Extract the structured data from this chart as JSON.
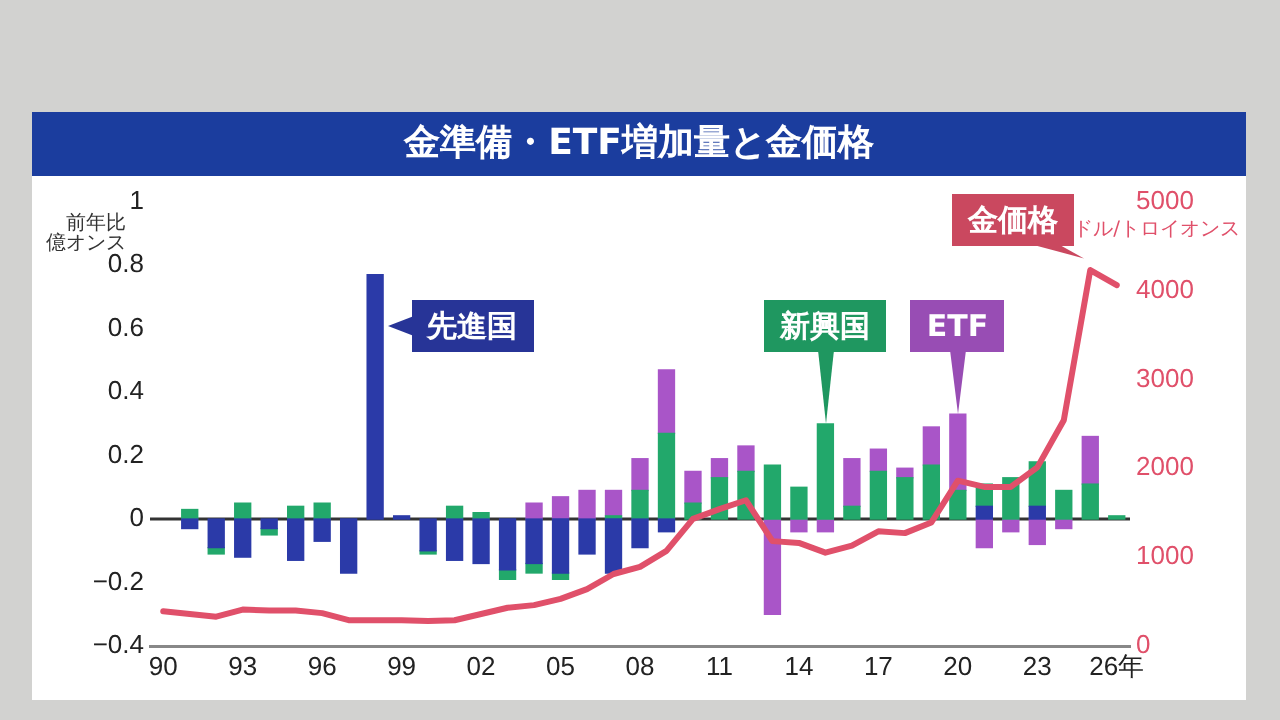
{
  "chart_data": {
    "type": "bar",
    "title": "金準備・ETF増加量と金価格",
    "ylabel": "前年比億オンス",
    "y2label": "ドル/トロイオンス",
    "stacked": true,
    "legend": false,
    "grid": false,
    "marker": "none",
    "categories": [
      "90",
      null,
      null,
      "93",
      null,
      null,
      "96",
      null,
      null,
      "99",
      null,
      null,
      "02",
      null,
      null,
      "05",
      null,
      null,
      "08",
      null,
      null,
      "11",
      null,
      null,
      "14",
      null,
      null,
      "17",
      null,
      null,
      "20",
      null,
      null,
      "23",
      null,
      null,
      "26年"
    ],
    "ylim": [
      -0.4,
      1
    ],
    "yticks": [
      {
        "value": -0.4,
        "label": "−0.4"
      },
      {
        "value": -0.2,
        "label": "−0.2"
      },
      0,
      0.2,
      0.4,
      0.6,
      0.8,
      1
    ],
    "y2lim": [
      0,
      5000
    ],
    "y2ticks": [
      0,
      1000,
      2000,
      3000,
      4000,
      5000
    ],
    "ref_lines": [
      {
        "axis": "y",
        "value": 0,
        "color": "#333333"
      }
    ],
    "series": [
      {
        "name": "先進国",
        "color": "#2b3aa8",
        "values": [
          null,
          -0.03,
          -0.09,
          -0.12,
          -0.03,
          -0.13,
          -0.07,
          -0.17,
          0.77,
          0.01,
          -0.1,
          -0.13,
          -0.14,
          -0.16,
          -0.14,
          -0.17,
          -0.11,
          -0.17,
          -0.09,
          -0.04,
          null,
          null,
          null,
          null,
          null,
          null,
          null,
          null,
          null,
          null,
          null,
          0.04,
          null,
          0.04,
          null,
          null,
          null
        ]
      },
      {
        "name": "新興国",
        "color": "#22a86b",
        "values": [
          null,
          0.03,
          -0.02,
          0.05,
          -0.02,
          0.04,
          0.05,
          null,
          null,
          null,
          -0.01,
          0.04,
          0.02,
          -0.03,
          -0.03,
          -0.02,
          null,
          0.01,
          0.09,
          0.27,
          0.05,
          0.13,
          0.15,
          0.17,
          0.1,
          0.3,
          0.04,
          0.15,
          0.13,
          0.17,
          0.09,
          0.07,
          0.13,
          0.14,
          0.09,
          0.11,
          0.01
        ]
      },
      {
        "name": "ETF",
        "color": "#a955c8",
        "values": [
          null,
          null,
          null,
          null,
          null,
          null,
          null,
          null,
          null,
          null,
          null,
          null,
          null,
          null,
          0.05,
          0.07,
          0.09,
          0.08,
          0.1,
          0.2,
          0.1,
          0.06,
          0.08,
          -0.3,
          -0.04,
          -0.04,
          0.15,
          0.07,
          0.03,
          0.12,
          0.24,
          -0.09,
          -0.04,
          -0.08,
          -0.03,
          0.15,
          null
        ]
      },
      {
        "name": "金価格",
        "type": "line",
        "axis": "y2",
        "color": "#e0506a",
        "values": [
          390,
          360,
          330,
          410,
          400,
          400,
          370,
          290,
          290,
          290,
          280,
          290,
          360,
          430,
          460,
          530,
          640,
          810,
          890,
          1070,
          1430,
          1540,
          1640,
          1180,
          1160,
          1050,
          1130,
          1290,
          1270,
          1390,
          1860,
          1790,
          1790,
          2010,
          2540,
          4230,
          4060
        ]
      }
    ]
  }
}
